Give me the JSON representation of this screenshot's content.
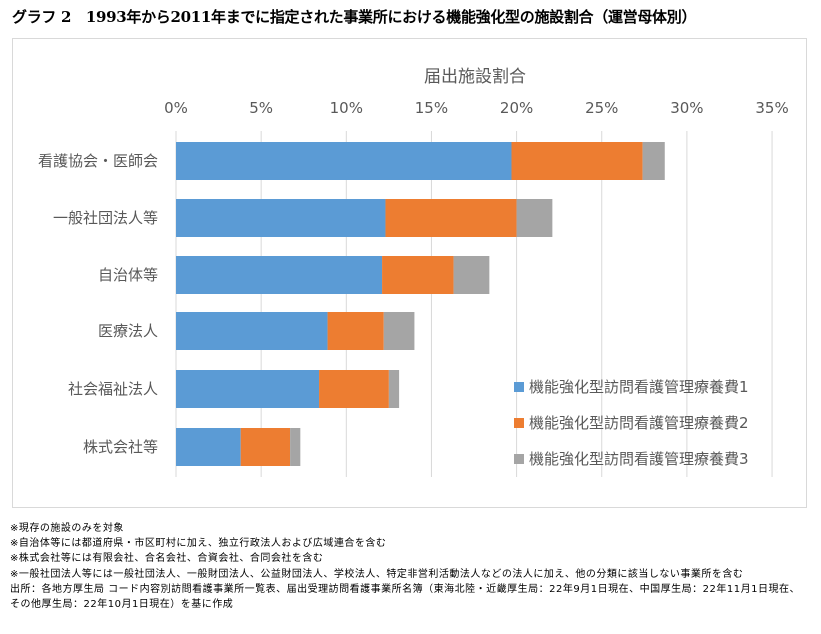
{
  "title": "グラフ 2　1993年から2011年までに指定された事業所における機能強化型の施設割合（運営母体別）",
  "chart_data": {
    "type": "bar",
    "orientation": "horizontal",
    "stacked": true,
    "title": "届出施設割合",
    "xlabel": "届出施設割合",
    "ylabel": "",
    "xlim": [
      0,
      35
    ],
    "x_ticks": [
      "0%",
      "5%",
      "10%",
      "15%",
      "20%",
      "25%",
      "30%",
      "35%"
    ],
    "x_tick_values": [
      0,
      5,
      10,
      15,
      20,
      25,
      30,
      35
    ],
    "grid": true,
    "legend_position": "bottom-right",
    "categories": [
      "看護協会・医師会",
      "一般社団法人等",
      "自治体等",
      "医療法人",
      "社会福祉法人",
      "株式会社等"
    ],
    "series": [
      {
        "name": "機能強化型訪問看護管理療養費1",
        "color": "#5b9bd5",
        "values": [
          19.7,
          12.3,
          12.1,
          8.9,
          8.4,
          3.8
        ]
      },
      {
        "name": "機能強化型訪問看護管理療養費2",
        "color": "#ed7d31",
        "values": [
          7.7,
          7.7,
          4.2,
          3.3,
          4.1,
          2.9
        ]
      },
      {
        "name": "機能強化型訪問看護管理療養費3",
        "color": "#a5a5a5",
        "values": [
          1.3,
          2.1,
          2.1,
          1.8,
          0.6,
          0.6
        ]
      }
    ]
  },
  "notes": [
    "※現存の施設のみを対象",
    "※自治体等には都道府県・市区町村に加え、独立行政法人および広域連合を含む",
    "※株式会社等には有限会社、合名会社、合資会社、合同会社を含む",
    "※一般社団法人等には一般社団法人、一般財団法人、公益財団法人、学校法人、特定非営利活動法人などの法人に加え、他の分類に該当しない事業所を含む",
    "出所：各地方厚生局 コード内容別訪問看護事業所一覧表、届出受理訪問看護事業所名簿（東海北陸・近畿厚生局：22年9月1日現在、中国厚生局：22年11月1日現在、その他厚生局：22年10月1日現在）を基に作成"
  ]
}
